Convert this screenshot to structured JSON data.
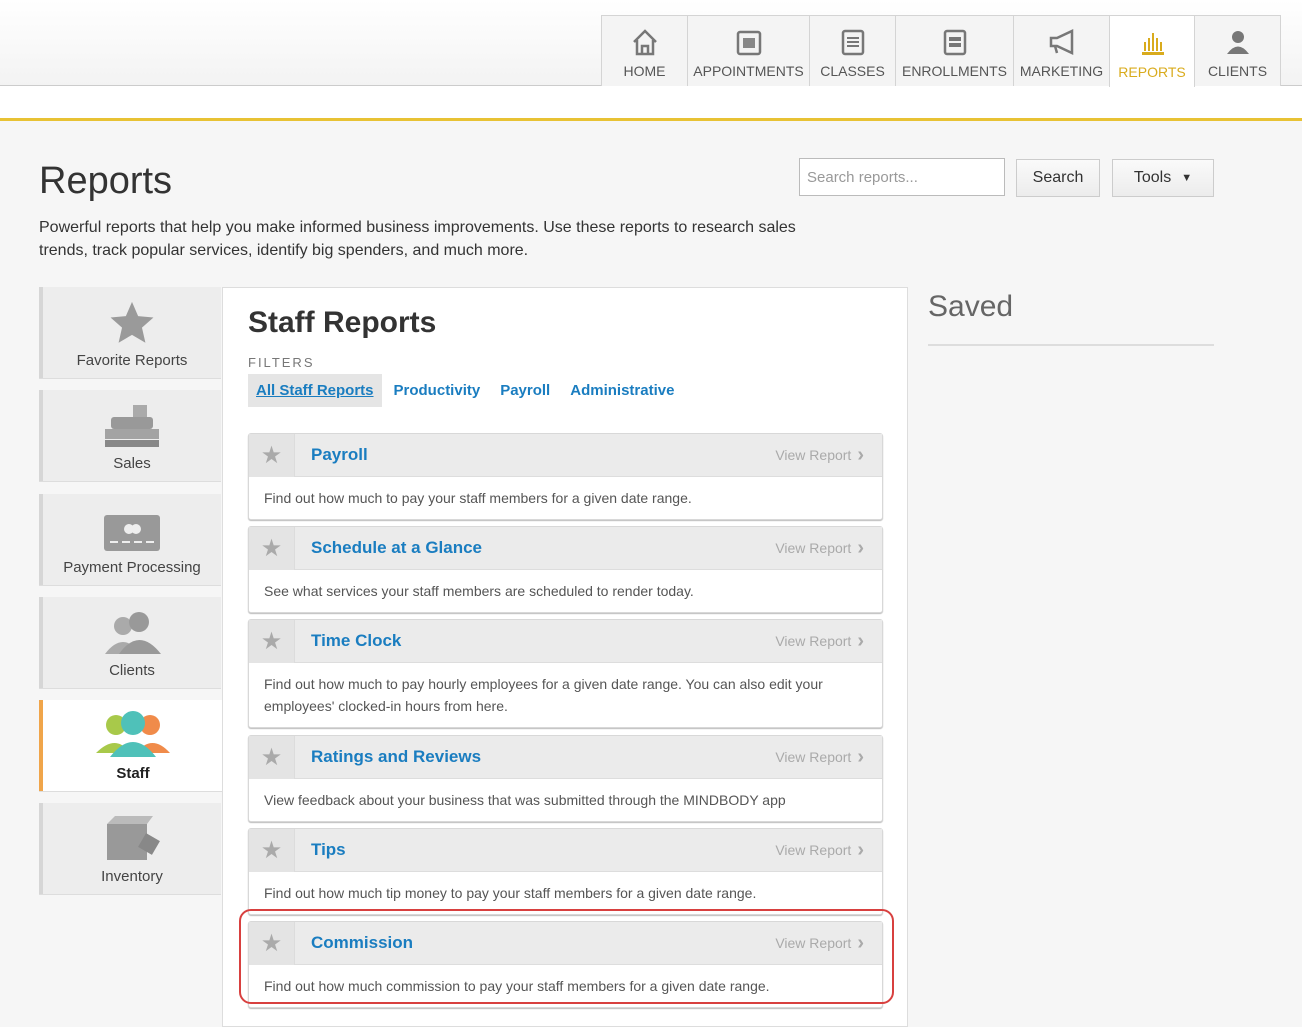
{
  "nav": {
    "tabs": [
      {
        "label": "HOME",
        "icon": "home-icon"
      },
      {
        "label": "APPOINTMENTS",
        "icon": "calendar-icon"
      },
      {
        "label": "CLASSES",
        "icon": "notepad-icon"
      },
      {
        "label": "ENROLLMENTS",
        "icon": "enrollment-icon"
      },
      {
        "label": "MARKETING",
        "icon": "megaphone-icon"
      },
      {
        "label": "REPORTS",
        "icon": "bar-chart-icon",
        "active": true
      },
      {
        "label": "CLIENTS",
        "icon": "person-icon"
      }
    ],
    "accent": "#e8c234"
  },
  "header": {
    "title": "Reports",
    "intro": "Powerful reports that help you make informed business improvements. Use these reports to research sales trends, track popular services, identify big spenders, and much more.",
    "search_placeholder": "Search reports...",
    "search_label": "Search",
    "tools_label": "Tools"
  },
  "sidebar": {
    "items": [
      {
        "label": "Favorite Reports"
      },
      {
        "label": "Sales"
      },
      {
        "label": "Payment Processing"
      },
      {
        "label": "Clients"
      },
      {
        "label": "Staff",
        "active": true
      },
      {
        "label": "Inventory"
      }
    ]
  },
  "main": {
    "title": "Staff Reports",
    "filters_label": "FILTERS",
    "filters": [
      "All Staff Reports",
      "Productivity",
      "Payroll",
      "Administrative"
    ],
    "view_label": "View Report",
    "reports": [
      {
        "title": "Payroll",
        "desc": "Find out how much to pay your staff members for a given date range."
      },
      {
        "title": "Schedule at a Glance",
        "desc": "See what services your staff members are scheduled to render today."
      },
      {
        "title": "Time Clock",
        "desc": "Find out how much to pay hourly employees for a given date range. You can also edit your employees' clocked-in hours from here."
      },
      {
        "title": "Ratings and Reviews",
        "desc": "View feedback about your business that was submitted through the MINDBODY app"
      },
      {
        "title": "Tips",
        "desc": "Find out how much tip money to pay your staff members for a given date range."
      },
      {
        "title": "Commission",
        "desc": "Find out how much commission to pay your staff members for a given date range."
      }
    ]
  },
  "saved": {
    "title": "Saved"
  }
}
